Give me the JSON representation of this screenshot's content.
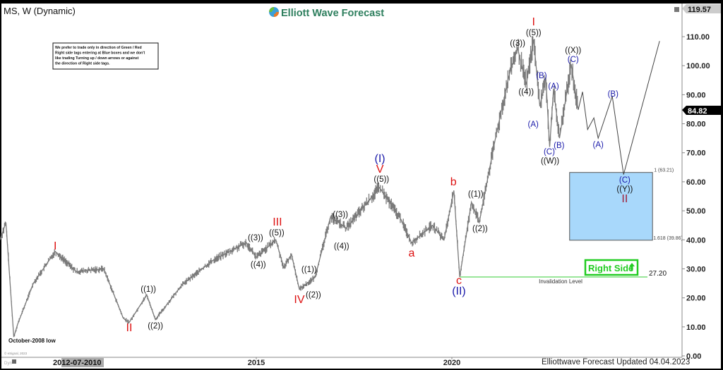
{
  "header": {
    "symbol_title": "MS, W (Dynamic)",
    "brand": "Elliott Wave Forecast",
    "note_lines": [
      "We prefer to trade only in direction of Green / Red",
      "Right side tags entering at Blue boxes and we don't",
      "like trading Turning up / down arrows or against",
      "the direction of Right side tags."
    ]
  },
  "footer": {
    "updated": "Elliottwave Forecast Updated 04.04.2023",
    "copyright": "© eSignal, 2023",
    "dyn": "Dyn"
  },
  "chart_data": {
    "type": "line",
    "title": "MS, W (Dynamic)",
    "ylim": [
      0,
      120
    ],
    "yticks": [
      "0.00",
      "10.00",
      "20.00",
      "30.00",
      "40.00",
      "50.00",
      "60.00",
      "70.00",
      "80.00",
      "90.00",
      "100.00",
      "110.00"
    ],
    "xticks": [
      {
        "label": "2015",
        "year": 2015
      },
      {
        "label": "2020",
        "year": 2020
      }
    ],
    "cursor_date": {
      "label": "2012-07-2010",
      "year": 2010
    },
    "last_price": "84.82",
    "high_price": "119.57",
    "colors": {
      "price": "#777777",
      "wave_red": "#dd1111",
      "wave_blue": "#1a1aaa",
      "wave_black": "#111111",
      "box": "#a8d8fb",
      "green": "#22cc22"
    },
    "price_path": [
      [
        2008.45,
        40
      ],
      [
        2008.6,
        46
      ],
      [
        2008.8,
        6.5
      ],
      [
        2008.9,
        11
      ],
      [
        2009.3,
        25
      ],
      [
        2009.86,
        36
      ],
      [
        2010.4,
        29
      ],
      [
        2011.1,
        30
      ],
      [
        2011.6,
        13
      ],
      [
        2011.75,
        11.5
      ],
      [
        2012.2,
        21
      ],
      [
        2012.42,
        12.5
      ],
      [
        2013.1,
        24.5
      ],
      [
        2013.9,
        33
      ],
      [
        2014.75,
        39
      ],
      [
        2015.0,
        34
      ],
      [
        2015.5,
        40
      ],
      [
        2015.7,
        30.5
      ],
      [
        2015.9,
        35
      ],
      [
        2016.1,
        23
      ],
      [
        2016.5,
        27
      ],
      [
        2016.9,
        48
      ],
      [
        2017.3,
        44
      ],
      [
        2018.15,
        58
      ],
      [
        2018.7,
        47
      ],
      [
        2018.97,
        39
      ],
      [
        2019.5,
        45
      ],
      [
        2019.8,
        40
      ],
      [
        2020.05,
        57
      ],
      [
        2020.2,
        27.2
      ],
      [
        2020.5,
        53
      ],
      [
        2020.7,
        46
      ],
      [
        2021.1,
        74
      ],
      [
        2021.45,
        96
      ],
      [
        2021.68,
        106
      ],
      [
        2021.9,
        93.5
      ],
      [
        2022.09,
        109
      ],
      [
        2022.25,
        86
      ],
      [
        2022.4,
        96
      ],
      [
        2022.5,
        72
      ],
      [
        2022.6,
        92
      ],
      [
        2022.75,
        75
      ],
      [
        2023.05,
        100.5
      ],
      [
        2023.23,
        84.82
      ]
    ],
    "projection_path": [
      [
        2023.23,
        84.8
      ],
      [
        2023.34,
        91
      ],
      [
        2023.47,
        78
      ],
      [
        2023.63,
        82
      ],
      [
        2023.74,
        75
      ],
      [
        2024.1,
        89.5
      ],
      [
        2024.39,
        62.5
      ],
      [
        2025.31,
        108.5
      ]
    ],
    "blue_box": {
      "from": 2023.01,
      "to": 2025.13,
      "top": 63.21,
      "bottom": 39.86,
      "top_label": "1 (63.21)",
      "bottom_label": "1.618 (39.86)"
    },
    "invalidation": {
      "value": 27.2,
      "value_label": "27.20",
      "label": "Invalidation Level",
      "from": 2020.2,
      "to": 2025.0
    },
    "right_side_tag": "Right Side",
    "annotation_low": "October-2008 low",
    "wave_labels": [
      {
        "text": "I",
        "c": "red",
        "x": 2009.86,
        "y": 37.6
      },
      {
        "text": "II",
        "c": "red",
        "x": 2011.75,
        "y": 9.5
      },
      {
        "text": "((1))",
        "c": "black",
        "x": 2012.24,
        "y": 23.1
      },
      {
        "text": "((2))",
        "c": "black",
        "x": 2012.42,
        "y": 10.4
      },
      {
        "text": "((3))",
        "c": "black",
        "x": 2014.98,
        "y": 40.8
      },
      {
        "text": "((4))",
        "c": "black",
        "x": 2015.05,
        "y": 31.6
      },
      {
        "text": "III",
        "c": "red",
        "x": 2015.54,
        "y": 45.9
      },
      {
        "text": "((5))",
        "c": "black",
        "x": 2015.52,
        "y": 42.5
      },
      {
        "text": "IV",
        "c": "red",
        "x": 2016.1,
        "y": 19.2
      },
      {
        "text": "((1))",
        "c": "black",
        "x": 2016.35,
        "y": 29.9
      },
      {
        "text": "((2))",
        "c": "black",
        "x": 2016.46,
        "y": 21.1
      },
      {
        "text": "((3))",
        "c": "black",
        "x": 2017.15,
        "y": 48.8
      },
      {
        "text": "((4))",
        "c": "black",
        "x": 2017.18,
        "y": 37.9
      },
      {
        "text": "(I)",
        "c": "blue",
        "x": 2018.16,
        "y": 67.8
      },
      {
        "text": "V",
        "c": "red",
        "x": 2018.16,
        "y": 64.1
      },
      {
        "text": "((5))",
        "c": "black",
        "x": 2018.2,
        "y": 61
      },
      {
        "text": "a",
        "c": "red",
        "x": 2018.97,
        "y": 35.2
      },
      {
        "text": "b",
        "c": "red",
        "x": 2020.04,
        "y": 59.7
      },
      {
        "text": "((1))",
        "c": "black",
        "x": 2020.61,
        "y": 55.9
      },
      {
        "text": "((2))",
        "c": "black",
        "x": 2020.72,
        "y": 44
      },
      {
        "text": "c",
        "c": "red",
        "x": 2020.18,
        "y": 25.7
      },
      {
        "text": "(II)",
        "c": "blue",
        "x": 2020.18,
        "y": 22.1
      },
      {
        "text": "((3))",
        "c": "black",
        "x": 2021.68,
        "y": 107.8
      },
      {
        "text": "I",
        "c": "red",
        "x": 2022.09,
        "y": 114.9
      },
      {
        "text": "((5))",
        "c": "black",
        "x": 2022.09,
        "y": 111.5
      },
      {
        "text": "((4))",
        "c": "black",
        "x": 2021.9,
        "y": 91.1
      },
      {
        "text": "(B)",
        "c": "blue",
        "x": 2022.29,
        "y": 96.6
      },
      {
        "text": "(A)",
        "c": "blue",
        "x": 2022.08,
        "y": 79.9
      },
      {
        "text": "(A)",
        "c": "blue",
        "x": 2022.6,
        "y": 93
      },
      {
        "text": "(C)",
        "c": "blue",
        "x": 2022.49,
        "y": 70.4
      },
      {
        "text": "(B)",
        "c": "blue",
        "x": 2022.74,
        "y": 72.6
      },
      {
        "text": "((W))",
        "c": "black",
        "x": 2022.51,
        "y": 67.3
      },
      {
        "text": "((X))",
        "c": "black",
        "x": 2023.1,
        "y": 105.4
      },
      {
        "text": "(C)",
        "c": "blue",
        "x": 2023.1,
        "y": 102.2
      },
      {
        "text": "(B)",
        "c": "blue",
        "x": 2024.12,
        "y": 90.3
      },
      {
        "text": "(A)",
        "c": "blue",
        "x": 2023.74,
        "y": 72.9
      },
      {
        "text": "(C)",
        "c": "blue",
        "x": 2024.42,
        "y": 60.7
      },
      {
        "text": "((Y))",
        "c": "black",
        "x": 2024.42,
        "y": 57.6
      },
      {
        "text": "II",
        "c": "darkred",
        "x": 2024.42,
        "y": 53.9
      }
    ]
  }
}
